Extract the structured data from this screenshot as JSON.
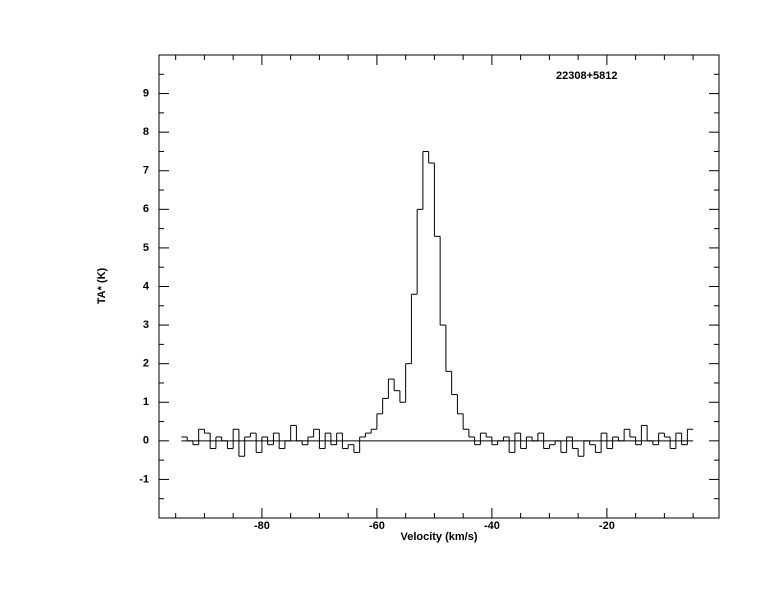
{
  "chart_data": {
    "type": "step",
    "title": "22308+5812",
    "xlabel": "Velocity (km/s)",
    "ylabel": "TA* (K)",
    "x": [
      -93.5,
      -92.5,
      -91.5,
      -90.5,
      -89.5,
      -88.5,
      -87.5,
      -86.5,
      -85.5,
      -84.5,
      -83.5,
      -82.5,
      -81.5,
      -80.5,
      -79.5,
      -78.5,
      -77.5,
      -76.5,
      -75.5,
      -74.5,
      -73.5,
      -72.5,
      -71.5,
      -70.5,
      -69.5,
      -68.5,
      -67.5,
      -66.5,
      -65.5,
      -64.5,
      -63.5,
      -62.5,
      -61.5,
      -60.5,
      -59.5,
      -58.5,
      -57.5,
      -56.5,
      -55.5,
      -54.5,
      -53.5,
      -52.5,
      -51.5,
      -50.5,
      -49.5,
      -48.5,
      -47.5,
      -46.5,
      -45.5,
      -44.5,
      -43.5,
      -42.5,
      -41.5,
      -40.5,
      -39.5,
      -38.5,
      -37.5,
      -36.5,
      -35.5,
      -34.5,
      -33.5,
      -32.5,
      -31.5,
      -30.5,
      -29.5,
      -28.5,
      -27.5,
      -26.5,
      -25.5,
      -24.5,
      -23.5,
      -22.5,
      -21.5,
      -20.5,
      -19.5,
      -18.5,
      -17.5,
      -16.5,
      -15.5,
      -14.5,
      -13.5,
      -12.5,
      -11.5,
      -10.5,
      -9.5,
      -8.5,
      -7.5,
      -6.5,
      -5.5
    ],
    "values": [
      0.1,
      0.0,
      -0.1,
      0.3,
      0.2,
      -0.2,
      0.1,
      0.0,
      -0.2,
      0.3,
      -0.4,
      0.1,
      0.2,
      -0.3,
      0.1,
      -0.1,
      0.2,
      -0.2,
      0.0,
      0.4,
      0.0,
      -0.1,
      0.1,
      0.3,
      -0.2,
      0.2,
      -0.1,
      0.2,
      -0.2,
      -0.1,
      -0.3,
      0.1,
      0.2,
      0.3,
      0.7,
      1.1,
      1.6,
      1.3,
      1.0,
      2.0,
      3.8,
      6.0,
      7.5,
      7.2,
      5.3,
      3.0,
      1.8,
      1.2,
      0.7,
      0.3,
      0.1,
      -0.1,
      0.2,
      0.1,
      -0.1,
      0.0,
      0.1,
      -0.3,
      0.2,
      -0.2,
      0.1,
      0.0,
      0.2,
      -0.2,
      -0.1,
      0.0,
      -0.3,
      0.1,
      -0.2,
      -0.4,
      0.0,
      -0.1,
      -0.3,
      0.2,
      -0.2,
      0.1,
      0.0,
      0.3,
      0.1,
      -0.1,
      0.4,
      0.0,
      -0.1,
      0.2,
      0.1,
      -0.2,
      0.2,
      -0.1,
      0.3
    ],
    "color": "#000000",
    "baseline": 0,
    "xlim": [
      -97.9,
      -0.5
    ],
    "xticks": [
      -80,
      -60,
      -40,
      -20
    ],
    "ylim": [
      -2,
      10
    ],
    "yticks": [
      -1,
      0,
      1,
      2,
      3,
      4,
      5,
      6,
      7,
      8,
      9
    ]
  }
}
